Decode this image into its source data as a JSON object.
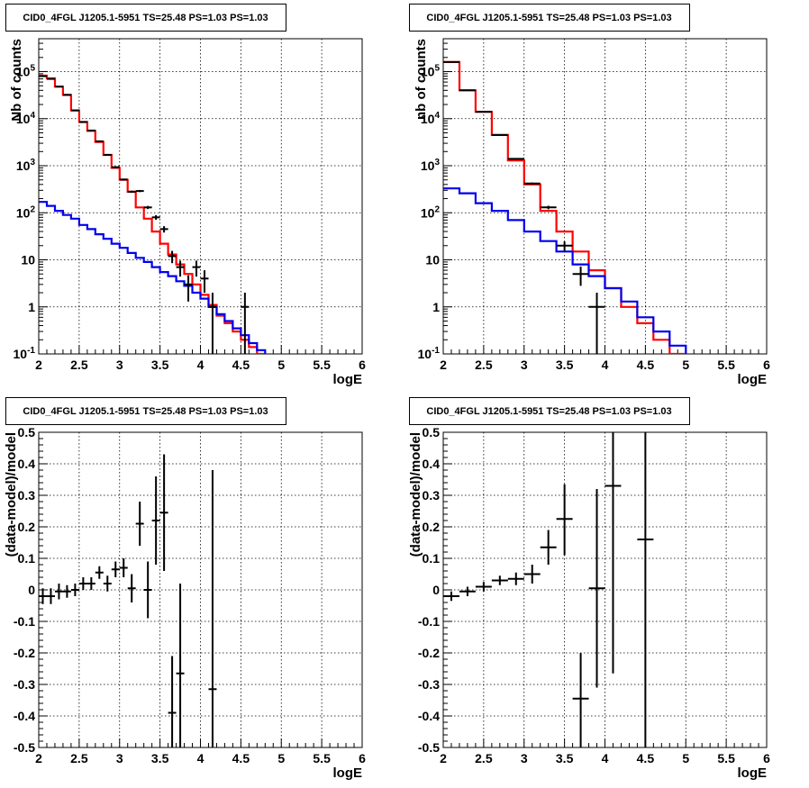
{
  "chart_data": [
    {
      "type": "line",
      "title": "CID0_4FGL J1205.1-5951 TS=25.48 PS=1.03 PS=1.03",
      "xlabel": "logE",
      "ylabel": "Nb of counts",
      "yscale": "log",
      "xlim": [
        2,
        6
      ],
      "ylim": [
        0.1,
        500000
      ],
      "grid": true,
      "x_ticks": [
        "2",
        "2.5",
        "3",
        "3.5",
        "4",
        "4.5",
        "5",
        "5.5",
        "6"
      ],
      "y_ticks": [
        {
          "base": "10",
          "exp": "-1",
          "v": 0.1
        },
        {
          "base": "1",
          "exp": "",
          "v": 1
        },
        {
          "base": "10",
          "exp": "",
          "v": 10
        },
        {
          "base": "10",
          "exp": "2",
          "v": 100
        },
        {
          "base": "10",
          "exp": "3",
          "v": 1000
        },
        {
          "base": "10",
          "exp": "4",
          "v": 10000
        },
        {
          "base": "10",
          "exp": "5",
          "v": 100000
        }
      ],
      "bin_edges": [
        2,
        2.1,
        2.2,
        2.3,
        2.4,
        2.5,
        2.6,
        2.7,
        2.8,
        2.9,
        3.0,
        3.1,
        3.2,
        3.3,
        3.4,
        3.5,
        3.6,
        3.7,
        3.8,
        3.9,
        4.0,
        4.1,
        4.2,
        4.3,
        4.4,
        4.5,
        4.6,
        4.7,
        4.8,
        4.9,
        5.0,
        5.1,
        5.2,
        5.3,
        5.4,
        5.5,
        5.6,
        5.7,
        5.8,
        5.9,
        6.0
      ],
      "series": [
        {
          "color": "#ff0000",
          "values": [
            82000,
            72000,
            48000,
            32000,
            15000,
            8500,
            5500,
            3200,
            1700,
            900,
            500,
            280,
            130,
            75,
            40,
            22,
            13,
            8,
            5,
            3,
            1.8,
            1.1,
            0.65,
            0.45,
            0.3,
            0.2,
            0.14,
            0.1,
            0.08,
            0.08,
            0.08,
            0.08,
            0.08,
            0.08,
            0.08,
            0.08,
            0.08,
            0.08,
            0.08,
            0.08
          ]
        },
        {
          "color": "#0000ee",
          "values": [
            170,
            140,
            110,
            90,
            75,
            55,
            45,
            35,
            28,
            22,
            18,
            14,
            11,
            9,
            7,
            5.5,
            4.5,
            3.5,
            2.8,
            2.0,
            1.5,
            1.0,
            0.7,
            0.5,
            0.35,
            0.25,
            0.17,
            0.12,
            0.09,
            0.08,
            0.08,
            0.08,
            0.08,
            0.08,
            0.08,
            0.08,
            0.08,
            0.08,
            0.08,
            0.08
          ]
        }
      ],
      "data_points": [
        {
          "x": 2.05,
          "y": 80000,
          "lo": 79000,
          "hi": 81000
        },
        {
          "x": 2.15,
          "y": 70000,
          "lo": 69000,
          "hi": 71000
        },
        {
          "x": 2.25,
          "y": 48000,
          "lo": 47000,
          "hi": 49000
        },
        {
          "x": 2.35,
          "y": 32000,
          "lo": 31500,
          "hi": 32500
        },
        {
          "x": 2.45,
          "y": 15000,
          "lo": 14800,
          "hi": 15200
        },
        {
          "x": 2.55,
          "y": 8500,
          "lo": 8400,
          "hi": 8600
        },
        {
          "x": 2.65,
          "y": 5600,
          "lo": 5500,
          "hi": 5700
        },
        {
          "x": 2.75,
          "y": 3300,
          "lo": 3250,
          "hi": 3350
        },
        {
          "x": 2.85,
          "y": 1700,
          "lo": 1650,
          "hi": 1750
        },
        {
          "x": 2.95,
          "y": 930,
          "lo": 900,
          "hi": 960
        },
        {
          "x": 3.05,
          "y": 510,
          "lo": 490,
          "hi": 530
        },
        {
          "x": 3.15,
          "y": 280,
          "lo": 265,
          "hi": 295
        },
        {
          "x": 3.25,
          "y": 290,
          "lo": 275,
          "hi": 305
        },
        {
          "x": 3.35,
          "y": 130,
          "lo": 120,
          "hi": 140
        },
        {
          "x": 3.45,
          "y": 80,
          "lo": 71,
          "hi": 89
        },
        {
          "x": 3.55,
          "y": 45,
          "lo": 38,
          "hi": 52
        },
        {
          "x": 3.65,
          "y": 12,
          "lo": 8.5,
          "hi": 15.5
        },
        {
          "x": 3.75,
          "y": 7,
          "lo": 4.4,
          "hi": 9.6
        },
        {
          "x": 3.85,
          "y": 3,
          "lo": 1.3,
          "hi": 4.7
        },
        {
          "x": 3.95,
          "y": 7,
          "lo": 4.4,
          "hi": 9.6
        },
        {
          "x": 4.05,
          "y": 4,
          "lo": 2.0,
          "hi": 6.0
        },
        {
          "x": 4.15,
          "y": 1,
          "lo": 0.1,
          "hi": 2.0
        },
        {
          "x": 4.55,
          "y": 1,
          "lo": 0.1,
          "hi": 2.0
        }
      ]
    },
    {
      "type": "line",
      "title": "CID0_4FGL J1205.1-5951 TS=25.48 PS=1.03 PS=1.03",
      "xlabel": "logE",
      "ylabel": "nb of counts",
      "yscale": "log",
      "xlim": [
        2,
        6
      ],
      "ylim": [
        0.1,
        500000
      ],
      "grid": true,
      "x_ticks": [
        "2",
        "2.5",
        "3",
        "3.5",
        "4",
        "4.5",
        "5",
        "5.5",
        "6"
      ],
      "y_ticks": [
        {
          "base": "10",
          "exp": "-1",
          "v": 0.1
        },
        {
          "base": "1",
          "exp": "",
          "v": 1
        },
        {
          "base": "10",
          "exp": "",
          "v": 10
        },
        {
          "base": "10",
          "exp": "2",
          "v": 100
        },
        {
          "base": "10",
          "exp": "3",
          "v": 1000
        },
        {
          "base": "10",
          "exp": "4",
          "v": 10000
        },
        {
          "base": "10",
          "exp": "5",
          "v": 100000
        }
      ],
      "bin_edges": [
        2,
        2.2,
        2.4,
        2.6,
        2.8,
        3.0,
        3.2,
        3.4,
        3.6,
        3.8,
        4.0,
        4.2,
        4.4,
        4.6,
        4.8,
        5.0,
        5.2,
        5.4,
        5.6,
        5.8,
        6.0
      ],
      "series": [
        {
          "color": "#ff0000",
          "values": [
            160000,
            40000,
            14000,
            4500,
            1300,
            400,
            110,
            40,
            15,
            6,
            2.5,
            1.0,
            0.45,
            0.2,
            0.1,
            0.08,
            0.08,
            0.08,
            0.08,
            0.08
          ]
        },
        {
          "color": "#0000ee",
          "values": [
            330,
            260,
            160,
            110,
            70,
            40,
            25,
            15,
            8,
            4.5,
            2.5,
            1.3,
            0.6,
            0.3,
            0.15,
            0.08,
            0.08,
            0.08,
            0.08,
            0.08
          ]
        }
      ],
      "data_points": [
        {
          "x": 2.1,
          "y": 160000,
          "lo": 159000,
          "hi": 161000
        },
        {
          "x": 2.3,
          "y": 40000,
          "lo": 39600,
          "hi": 40400
        },
        {
          "x": 2.5,
          "y": 14000,
          "lo": 13800,
          "hi": 14200
        },
        {
          "x": 2.7,
          "y": 4500,
          "lo": 4430,
          "hi": 4570
        },
        {
          "x": 2.9,
          "y": 1400,
          "lo": 1360,
          "hi": 1440
        },
        {
          "x": 3.1,
          "y": 420,
          "lo": 400,
          "hi": 440
        },
        {
          "x": 3.3,
          "y": 130,
          "lo": 119,
          "hi": 141
        },
        {
          "x": 3.5,
          "y": 20,
          "lo": 15.5,
          "hi": 24.5
        },
        {
          "x": 3.7,
          "y": 5,
          "lo": 2.8,
          "hi": 7.2
        },
        {
          "x": 3.9,
          "y": 1,
          "lo": 0.1,
          "hi": 2.0
        }
      ]
    },
    {
      "type": "scatter",
      "title": "CID0_4FGL J1205.1-5951 TS=25.48 PS=1.03 PS=1.03",
      "xlabel": "logE",
      "ylabel": "(data-model)/model",
      "xlim": [
        2,
        6
      ],
      "ylim": [
        -0.5,
        0.5
      ],
      "grid": true,
      "x_ticks": [
        "2",
        "2.5",
        "3",
        "3.5",
        "4",
        "4.5",
        "5",
        "5.5",
        "6"
      ],
      "y_ticks": [
        "-0.5",
        "-0.4",
        "-0.3",
        "-0.2",
        "-0.1",
        "0",
        "0.1",
        "0.2",
        "0.3",
        "0.4",
        "0.5"
      ],
      "points": [
        {
          "x": 2.05,
          "y": -0.02,
          "lo": -0.045,
          "hi": 0.005,
          "xerr": 0.05
        },
        {
          "x": 2.15,
          "y": -0.02,
          "lo": -0.045,
          "hi": 0.005,
          "xerr": 0.05
        },
        {
          "x": 2.25,
          "y": -0.005,
          "lo": -0.03,
          "hi": 0.02,
          "xerr": 0.05
        },
        {
          "x": 2.35,
          "y": -0.005,
          "lo": -0.025,
          "hi": 0.015,
          "xerr": 0.05
        },
        {
          "x": 2.45,
          "y": 0.0,
          "lo": -0.02,
          "hi": 0.02,
          "xerr": 0.05
        },
        {
          "x": 2.55,
          "y": 0.02,
          "lo": 0.0,
          "hi": 0.04,
          "xerr": 0.05
        },
        {
          "x": 2.65,
          "y": 0.02,
          "lo": 0.0,
          "hi": 0.04,
          "xerr": 0.05
        },
        {
          "x": 2.75,
          "y": 0.055,
          "lo": 0.035,
          "hi": 0.075,
          "xerr": 0.05
        },
        {
          "x": 2.85,
          "y": 0.02,
          "lo": -0.005,
          "hi": 0.045,
          "xerr": 0.05
        },
        {
          "x": 2.95,
          "y": 0.065,
          "lo": 0.04,
          "hi": 0.09,
          "xerr": 0.05
        },
        {
          "x": 3.05,
          "y": 0.07,
          "lo": 0.04,
          "hi": 0.1,
          "xerr": 0.05
        },
        {
          "x": 3.15,
          "y": 0.005,
          "lo": -0.04,
          "hi": 0.05,
          "xerr": 0.05
        },
        {
          "x": 3.25,
          "y": 0.21,
          "lo": 0.14,
          "hi": 0.28,
          "xerr": 0.05
        },
        {
          "x": 3.35,
          "y": 0.0,
          "lo": -0.09,
          "hi": 0.09,
          "xerr": 0.05
        },
        {
          "x": 3.45,
          "y": 0.22,
          "lo": 0.08,
          "hi": 0.36,
          "xerr": 0.05
        },
        {
          "x": 3.55,
          "y": 0.245,
          "lo": 0.06,
          "hi": 0.43,
          "xerr": 0.05
        },
        {
          "x": 3.65,
          "y": -0.39,
          "lo": -0.5,
          "hi": -0.21,
          "xerr": 0.05
        },
        {
          "x": 3.75,
          "y": -0.265,
          "lo": -0.5,
          "hi": 0.02,
          "xerr": 0.05
        },
        {
          "x": 4.15,
          "y": -0.315,
          "lo": -0.5,
          "hi": 0.38,
          "xerr": 0.05
        }
      ]
    },
    {
      "type": "scatter",
      "title": "CID0_4FGL J1205.1-5951 TS=25.48 PS=1.03 PS=1.03",
      "xlabel": "logE",
      "ylabel": "(data-model)/model",
      "xlim": [
        2,
        6
      ],
      "ylim": [
        -0.5,
        0.5
      ],
      "grid": true,
      "x_ticks": [
        "2",
        "2.5",
        "3",
        "3.5",
        "4",
        "4.5",
        "5",
        "5.5",
        "6"
      ],
      "y_ticks": [
        "-0.5",
        "-0.4",
        "-0.3",
        "-0.2",
        "-0.1",
        "0",
        "0.1",
        "0.2",
        "0.3",
        "0.4",
        "0.5"
      ],
      "points": [
        {
          "x": 2.1,
          "y": -0.02,
          "lo": -0.035,
          "hi": -0.005,
          "xerr": 0.1
        },
        {
          "x": 2.3,
          "y": -0.005,
          "lo": -0.02,
          "hi": 0.01,
          "xerr": 0.1
        },
        {
          "x": 2.5,
          "y": 0.01,
          "lo": -0.005,
          "hi": 0.025,
          "xerr": 0.1
        },
        {
          "x": 2.7,
          "y": 0.03,
          "lo": 0.015,
          "hi": 0.045,
          "xerr": 0.1
        },
        {
          "x": 2.9,
          "y": 0.035,
          "lo": 0.015,
          "hi": 0.055,
          "xerr": 0.1
        },
        {
          "x": 3.1,
          "y": 0.05,
          "lo": 0.02,
          "hi": 0.08,
          "xerr": 0.1
        },
        {
          "x": 3.3,
          "y": 0.135,
          "lo": 0.08,
          "hi": 0.19,
          "xerr": 0.1
        },
        {
          "x": 3.5,
          "y": 0.225,
          "lo": 0.11,
          "hi": 0.335,
          "xerr": 0.1
        },
        {
          "x": 3.7,
          "y": -0.345,
          "lo": -0.5,
          "hi": -0.2,
          "xerr": 0.1
        },
        {
          "x": 3.9,
          "y": 0.005,
          "lo": -0.31,
          "hi": 0.32,
          "xerr": 0.1
        },
        {
          "x": 4.1,
          "y": 0.33,
          "lo": -0.265,
          "hi": 0.5,
          "xerr": 0.1
        },
        {
          "x": 4.5,
          "y": 0.16,
          "lo": -0.5,
          "hi": 0.5,
          "xerr": 0.1
        }
      ]
    }
  ]
}
